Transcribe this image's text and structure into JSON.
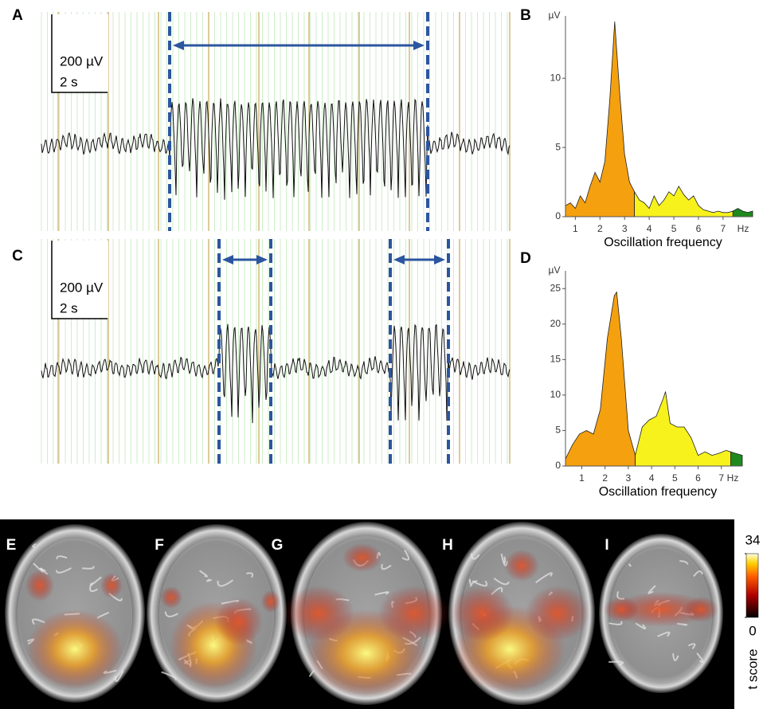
{
  "eeg_panels": [
    {
      "label": "A",
      "scale_amplitude": "200 µV",
      "scale_time": "2 s"
    },
    {
      "label": "C",
      "scale_amplitude": "200 µV",
      "scale_time": "2 s"
    }
  ],
  "chart_data": [
    {
      "type": "area",
      "panel": "B",
      "y_unit": "µV",
      "x_unit": "Hz",
      "xlabel": "Oscillation frequency",
      "x": [
        0.6,
        0.8,
        1.0,
        1.2,
        1.4,
        1.6,
        1.8,
        2.0,
        2.2,
        2.4,
        2.6,
        2.8,
        3.0,
        3.2,
        3.4,
        3.6,
        3.8,
        4.0,
        4.2,
        4.4,
        4.6,
        4.8,
        5.0,
        5.2,
        5.4,
        5.6,
        5.8,
        6.0,
        6.2,
        6.4,
        6.6,
        6.8,
        7.0,
        7.2,
        7.4,
        7.6,
        7.8,
        8.0,
        8.2
      ],
      "series": [
        {
          "color": "#f5a00f",
          "values": [
            0.8,
            1.0,
            0.6,
            1.5,
            1.0,
            2.2,
            3.2,
            2.5,
            4.0,
            8.5,
            14.1,
            9.0,
            4.5,
            2.5,
            1.8,
            null,
            null,
            null,
            null,
            null,
            null,
            null,
            null,
            null,
            null,
            null,
            null,
            null,
            null,
            null,
            null,
            null,
            null,
            null,
            null,
            null,
            null,
            null,
            null
          ]
        },
        {
          "color": "#f7f21c",
          "values": [
            null,
            null,
            null,
            null,
            null,
            null,
            null,
            null,
            null,
            null,
            null,
            null,
            null,
            null,
            1.8,
            1.2,
            1.0,
            0.6,
            1.5,
            0.8,
            1.2,
            1.8,
            1.5,
            2.2,
            1.6,
            1.2,
            1.5,
            0.8,
            0.5,
            0.4,
            0.3,
            0.4,
            0.3,
            0.3,
            0.4,
            null,
            null,
            null,
            null
          ]
        },
        {
          "color": "#1e8a1e",
          "values": [
            null,
            null,
            null,
            null,
            null,
            null,
            null,
            null,
            null,
            null,
            null,
            null,
            null,
            null,
            null,
            null,
            null,
            null,
            null,
            null,
            null,
            null,
            null,
            null,
            null,
            null,
            null,
            null,
            null,
            null,
            null,
            null,
            null,
            null,
            0.4,
            0.6,
            0.4,
            0.3,
            0.4
          ]
        }
      ],
      "xlim": [
        0.6,
        8.2
      ],
      "ylim": [
        0,
        14.5
      ],
      "xticks": [
        1,
        2,
        3,
        4,
        5,
        6,
        7
      ],
      "yticks": [
        0,
        5,
        10
      ]
    },
    {
      "type": "area",
      "panel": "D",
      "y_unit": "µV",
      "x_unit": "Hz",
      "xlabel": "Oscillation frequency",
      "x": [
        0.3,
        0.6,
        0.9,
        1.2,
        1.5,
        1.8,
        2.1,
        2.4,
        2.5,
        2.7,
        3.0,
        3.3,
        3.6,
        3.9,
        4.2,
        4.5,
        4.6,
        4.8,
        5.1,
        5.4,
        5.7,
        6.0,
        6.3,
        6.6,
        6.9,
        7.2,
        7.4,
        7.6,
        7.9
      ],
      "series": [
        {
          "color": "#f5a00f",
          "values": [
            1,
            3,
            4.5,
            5,
            4.5,
            8,
            18,
            24,
            24.5,
            18,
            5,
            1.5,
            null,
            null,
            null,
            null,
            null,
            null,
            null,
            null,
            null,
            null,
            null,
            null,
            null,
            null,
            null,
            null,
            null
          ]
        },
        {
          "color": "#f7f21c",
          "values": [
            null,
            null,
            null,
            null,
            null,
            null,
            null,
            null,
            null,
            null,
            null,
            1.5,
            5.5,
            6.5,
            7,
            9.5,
            10.5,
            6,
            5.5,
            5.5,
            4,
            1.5,
            2,
            1.5,
            1.8,
            2.2,
            2,
            null,
            null
          ]
        },
        {
          "color": "#1e8a1e",
          "values": [
            null,
            null,
            null,
            null,
            null,
            null,
            null,
            null,
            null,
            null,
            null,
            null,
            null,
            null,
            null,
            null,
            null,
            null,
            null,
            null,
            null,
            null,
            null,
            null,
            null,
            null,
            2,
            1.8,
            1.5
          ]
        }
      ],
      "xlim": [
        0.3,
        7.9
      ],
      "ylim": [
        0,
        27.5
      ],
      "xticks": [
        1,
        2,
        3,
        4,
        5,
        6,
        7
      ],
      "yticks": [
        0,
        5,
        10,
        15,
        20,
        25
      ]
    }
  ],
  "brain_panels": [
    "E",
    "F",
    "G",
    "H",
    "I"
  ],
  "colorbar": {
    "ticks": [
      0,
      34
    ],
    "label": "t score"
  }
}
